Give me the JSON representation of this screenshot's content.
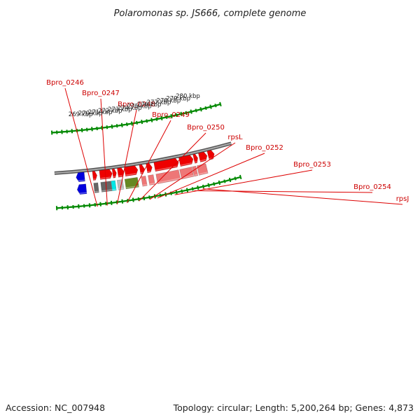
{
  "title": "Polaromonas sp. JS666, complete genome",
  "footer": {
    "accession": "Accession: NC_007948",
    "summary": "Topology: circular; Length: 5,200,264 bp; Genes: 4,873"
  },
  "map": {
    "view_start_kbp": 268.3,
    "view_end_kbp": 280.9,
    "tick_labels": [
      {
        "kbp": 269,
        "label": "269 kbp"
      },
      {
        "kbp": 270,
        "label": "270 kbp"
      },
      {
        "kbp": 271,
        "label": "271 kbp"
      },
      {
        "kbp": 272,
        "label": "272 kbp"
      },
      {
        "kbp": 273,
        "label": "273 kbp"
      },
      {
        "kbp": 274,
        "label": "274 kbp"
      },
      {
        "kbp": 275,
        "label": "275 kbp"
      },
      {
        "kbp": 276,
        "label": "276 kbp"
      },
      {
        "kbp": 277,
        "label": "277 kbp"
      },
      {
        "kbp": 278,
        "label": "278 kbp"
      },
      {
        "kbp": 279,
        "label": "279 kbp"
      },
      {
        "kbp": 280,
        "label": "280 kbp"
      }
    ],
    "gene_labels": [
      {
        "name": "Bpro_0246",
        "kbp": 269.7
      },
      {
        "name": "Bpro_0247",
        "kbp": 270.6
      },
      {
        "name": "Bpro_0248",
        "kbp": 271.5
      },
      {
        "name": "Bpro_0249",
        "kbp": 272.4
      },
      {
        "name": "Bpro_0250",
        "kbp": 273.5
      },
      {
        "name": "rpsL",
        "kbp": 274.5
      },
      {
        "name": "Bpro_0252",
        "kbp": 275.2
      },
      {
        "name": "Bpro_0253",
        "kbp": 276.8
      },
      {
        "name": "Bpro_0254",
        "kbp": 278.6
      },
      {
        "name": "rpsJ",
        "kbp": 279.4
      }
    ],
    "features": [
      {
        "track": "outer",
        "start": 268.0,
        "end": 268.85,
        "color": "#0000dd",
        "arrow": "left"
      },
      {
        "track": "inner",
        "start": 268.0,
        "end": 268.8,
        "color": "#0000dd",
        "arrow": "left"
      },
      {
        "track": "outer",
        "start": 269.58,
        "end": 269.98,
        "color": "#666666",
        "arrow": "none"
      },
      {
        "track": "outer",
        "start": 270.24,
        "end": 271.2,
        "color": "#666666",
        "arrow": "none"
      },
      {
        "track": "outer",
        "start": 271.22,
        "end": 271.6,
        "color": "#00e6e6",
        "arrow": "none"
      },
      {
        "track": "outer",
        "start": 271.78,
        "end": 272.3,
        "color": "#bbbbbb",
        "arrow": "none"
      },
      {
        "track": "outer",
        "start": 272.5,
        "end": 273.7,
        "color": "#668822",
        "arrow": "none"
      },
      {
        "track": "outer",
        "start": 274.05,
        "end": 274.47,
        "color": "#ee7777",
        "arrow": "none"
      },
      {
        "track": "outer",
        "start": 274.7,
        "end": 275.2,
        "color": "#ee7777",
        "arrow": "none"
      },
      {
        "track": "outer",
        "start": 275.45,
        "end": 277.6,
        "color": "#ee7777",
        "arrow": "none"
      },
      {
        "track": "outer",
        "start": 277.7,
        "end": 278.85,
        "color": "#ee7777",
        "arrow": "none"
      },
      {
        "track": "outer",
        "start": 278.9,
        "end": 279.25,
        "color": "#ee7777",
        "arrow": "none"
      },
      {
        "track": "outer",
        "start": 279.35,
        "end": 280.2,
        "color": "#ee7777",
        "arrow": "none"
      },
      {
        "track": "inner",
        "start": 269.58,
        "end": 269.98,
        "color": "#ee0000",
        "arrow": "right"
      },
      {
        "track": "inner",
        "start": 270.24,
        "end": 271.42,
        "color": "#ee0000",
        "arrow": "right"
      },
      {
        "track": "inner",
        "start": 271.46,
        "end": 271.82,
        "color": "#ee0000",
        "arrow": "right"
      },
      {
        "track": "inner",
        "start": 271.95,
        "end": 272.55,
        "color": "#ee0000",
        "arrow": "right"
      },
      {
        "track": "inner",
        "start": 272.62,
        "end": 273.85,
        "color": "#ee0000",
        "arrow": "right"
      },
      {
        "track": "inner",
        "start": 274.05,
        "end": 274.48,
        "color": "#ee0000",
        "arrow": "right"
      },
      {
        "track": "inner",
        "start": 274.7,
        "end": 275.22,
        "color": "#ee0000",
        "arrow": "right"
      },
      {
        "track": "inner",
        "start": 275.45,
        "end": 277.75,
        "color": "#ee0000",
        "arrow": "right"
      },
      {
        "track": "inner",
        "start": 277.85,
        "end": 279.15,
        "color": "#ee0000",
        "arrow": "right"
      },
      {
        "track": "inner",
        "start": 279.22,
        "end": 279.6,
        "color": "#ee0000",
        "arrow": "right"
      },
      {
        "track": "inner",
        "start": 279.75,
        "end": 280.5,
        "color": "#ee0000",
        "arrow": "right"
      },
      {
        "track": "inner",
        "start": 280.6,
        "end": 281.2,
        "color": "#ee0000",
        "arrow": "right"
      }
    ],
    "colors": {
      "backbone": "#888888",
      "backbone_edge": "#555555",
      "tick": "#008800",
      "label_line": "#dd0000"
    }
  }
}
